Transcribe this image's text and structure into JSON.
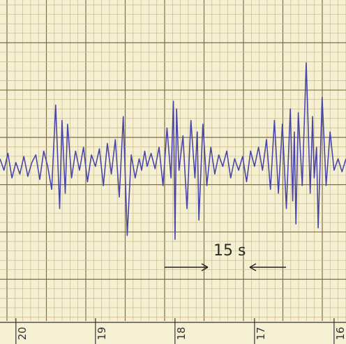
{
  "chart_data": {
    "type": "line",
    "title": "",
    "xlabel": "",
    "ylabel": "",
    "x_ticks": [
      {
        "label": "20",
        "value": 20
      },
      {
        "label": "19",
        "value": 19
      },
      {
        "label": "18",
        "value": 18
      },
      {
        "label": "17",
        "value": 17
      },
      {
        "label": "16",
        "value": 16
      }
    ],
    "xlim": [
      20.2,
      15.85
    ],
    "ylim": [
      -1,
      1
    ],
    "grid": true,
    "annotation": {
      "text": "15 s",
      "arrow_from": 18.0,
      "arrow_to": 17.3,
      "arrow_back_from": 16.5,
      "arrow_back_to": 16.95
    },
    "colors": {
      "trace": "#4a46a8",
      "paper": "#f6f0d2",
      "grid_minor": "#c9b98a",
      "grid_major": "#7d6e4c"
    },
    "series": [
      {
        "x": [
          20.2,
          20.15,
          20.1,
          20.05,
          20.0,
          19.95,
          19.9,
          19.85,
          19.8,
          19.75,
          19.7,
          19.65,
          19.6,
          19.55,
          19.5,
          19.45,
          19.42,
          19.38,
          19.35,
          19.3,
          19.25,
          19.2,
          19.15,
          19.1,
          19.05,
          19.0,
          18.95,
          18.9,
          18.85,
          18.8,
          18.75,
          18.7,
          18.65,
          18.6,
          18.55,
          18.5,
          18.45,
          18.42,
          18.38,
          18.35,
          18.3,
          18.25,
          18.2,
          18.15,
          18.1,
          18.05,
          18.02,
          18.0,
          17.98,
          17.95,
          17.9,
          17.85,
          17.8,
          17.75,
          17.72,
          17.7,
          17.65,
          17.6,
          17.55,
          17.5,
          17.45,
          17.4,
          17.35,
          17.3,
          17.25,
          17.2,
          17.15,
          17.1,
          17.05,
          17.0,
          16.95,
          16.9,
          16.85,
          16.8,
          16.75,
          16.7,
          16.65,
          16.6,
          16.55,
          16.52,
          16.5,
          16.48,
          16.45,
          16.4,
          16.35,
          16.3,
          16.27,
          16.25,
          16.22,
          16.2,
          16.15,
          16.1,
          16.05,
          16.0,
          15.95,
          15.9,
          15.85
        ],
        "y": [
          0.05,
          -0.1,
          0.12,
          -0.2,
          0.0,
          -0.15,
          0.08,
          -0.18,
          0.0,
          0.1,
          -0.22,
          0.15,
          -0.05,
          -0.35,
          0.75,
          -0.6,
          0.55,
          -0.4,
          0.5,
          -0.2,
          0.15,
          -0.1,
          0.2,
          -0.25,
          0.1,
          -0.05,
          0.18,
          -0.3,
          0.25,
          -0.15,
          0.3,
          -0.45,
          0.6,
          -0.95,
          0.1,
          -0.2,
          0.05,
          -0.1,
          0.15,
          -0.05,
          0.12,
          -0.08,
          0.2,
          -0.3,
          0.45,
          -0.2,
          0.8,
          -1.0,
          0.7,
          -0.1,
          0.35,
          -0.6,
          0.55,
          -0.2,
          0.4,
          -0.75,
          0.5,
          -0.3,
          0.2,
          -0.15,
          0.1,
          -0.05,
          0.15,
          -0.2,
          0.05,
          -0.1,
          0.08,
          -0.25,
          0.15,
          -0.05,
          0.2,
          -0.1,
          0.3,
          -0.35,
          0.55,
          -0.4,
          0.5,
          -0.6,
          0.7,
          -0.5,
          0.4,
          -0.8,
          0.65,
          -0.3,
          1.3,
          -0.4,
          0.6,
          -0.2,
          0.2,
          -0.85,
          0.85,
          -0.3,
          0.4,
          -0.1,
          0.05,
          -0.12,
          0.05
        ]
      }
    ]
  }
}
